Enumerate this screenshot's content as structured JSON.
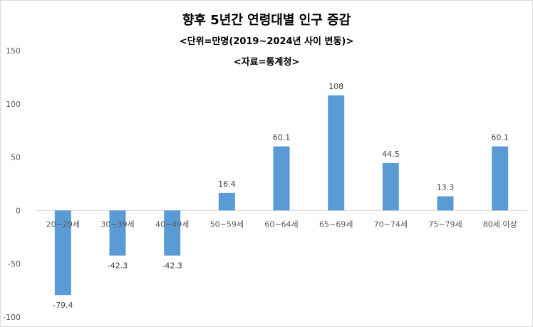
{
  "chart_data": {
    "type": "bar",
    "title": "향후 5년간 연령대별 인구 증감",
    "subtitle": "<단위=만명(2019~2024년 사이 변동)>",
    "source": "<자료=통계청>",
    "categories": [
      "20~29세",
      "30~39세",
      "40~49세",
      "50~59세",
      "60~64세",
      "65~69세",
      "70~74세",
      "75~79세",
      "80세 이상"
    ],
    "series": [
      {
        "values": [
          -79.4,
          -42.3,
          -42.3,
          16.4,
          60.1,
          108,
          44.5,
          13.3,
          60.1
        ],
        "color": "#5b9bd5"
      }
    ],
    "data_labels": [
      "-79.4",
      "-42.3",
      "-42.3",
      "16.4",
      "60.1",
      "108",
      "44.5",
      "13.3",
      "60.1"
    ],
    "ylim": [
      -100,
      150
    ],
    "yticks": [
      -100,
      -50,
      0,
      50,
      100,
      150
    ],
    "ytick_labels": [
      "-100",
      "-50",
      "0",
      "50",
      "100",
      "150"
    ],
    "xlabel": "",
    "ylabel": "",
    "grid": false,
    "legend": "none"
  }
}
